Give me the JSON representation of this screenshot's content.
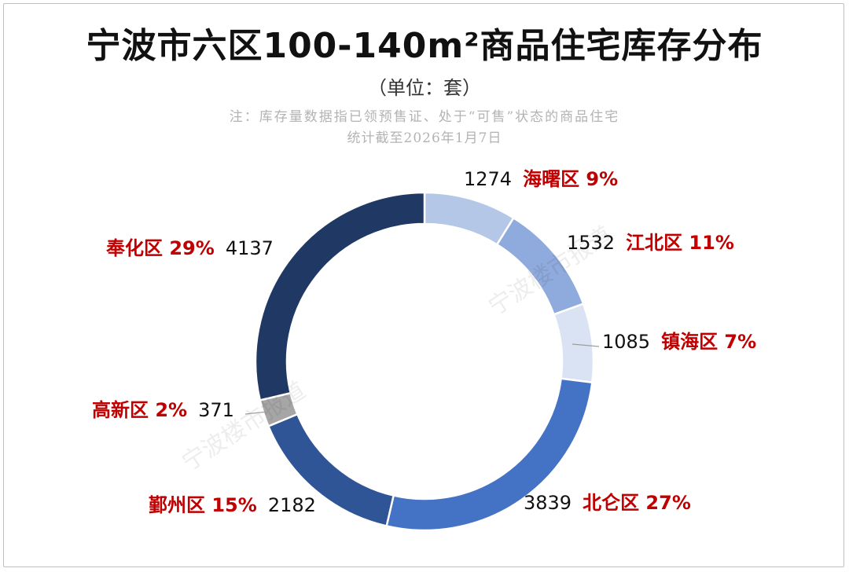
{
  "header": {
    "title": "宁波市六区100-140m²商品住宅库存分布",
    "unit": "（单位：套）",
    "note_line1": "注：库存量数据指已领预售证、处于“可售”状态的商品住宅",
    "note_line2": "统计截至2026年1月7日"
  },
  "watermark": "宁波楼市报道",
  "colors": {
    "label_red": "#c00000",
    "value_black": "#111111",
    "leader": "#9e9e9e"
  },
  "chart_data": {
    "type": "pie",
    "donut": true,
    "start": "12 o'clock, clockwise",
    "slices": [
      {
        "name": "海曙区",
        "value": 1274,
        "percent_label": "9%",
        "color": "#b4c7e7"
      },
      {
        "name": "江北区",
        "value": 1532,
        "percent_label": "11%",
        "color": "#8faadc"
      },
      {
        "name": "镇海区",
        "value": 1085,
        "percent_label": "7%",
        "color": "#dae3f3"
      },
      {
        "name": "北仑区",
        "value": 3839,
        "percent_label": "27%",
        "color": "#4472c4"
      },
      {
        "name": "鄞州区",
        "value": 2182,
        "percent_label": "15%",
        "color": "#2f5597"
      },
      {
        "name": "高新区",
        "value": 371,
        "percent_label": "2%",
        "color": "#a6a6a6"
      },
      {
        "name": "奉化区",
        "value": 4137,
        "percent_label": "29%",
        "color": "#203864"
      }
    ]
  }
}
